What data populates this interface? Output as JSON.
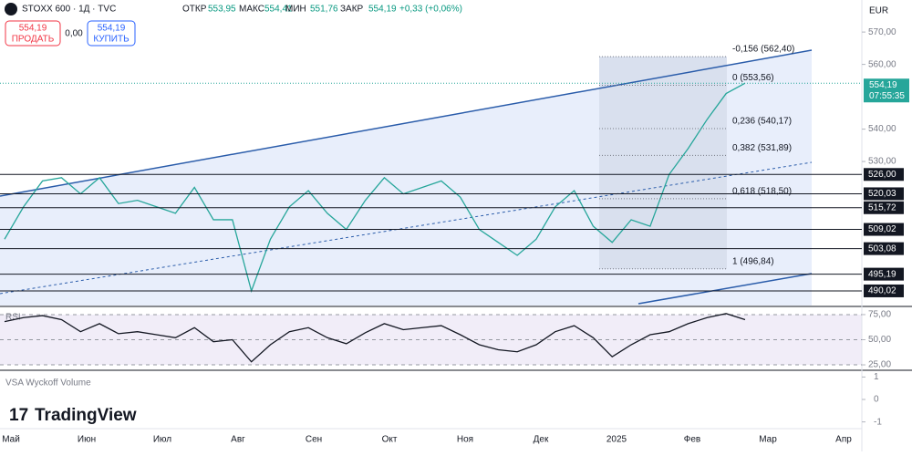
{
  "header": {
    "symbol": "STOXX 600 · 1Д · TVC",
    "open_label": "ОТКР",
    "open": "553,95",
    "high_label": "МАКС",
    "high": "554,41",
    "low_label": "МИН",
    "low": "551,76",
    "close_label": "ЗАКР",
    "close": "554,19",
    "change": "+0,33 (+0,06%)",
    "sell_price": "554,19",
    "sell": "ПРОДАТЬ",
    "spread": "0,00",
    "buy_price": "554,19",
    "buy": "КУПИТЬ",
    "currency": "EUR",
    "logo": "TradingView"
  },
  "chart_data": [
    {
      "type": "line",
      "name": "STOXX 600",
      "color": "#26a69a",
      "values": [
        506,
        516,
        524,
        525,
        520,
        525,
        517,
        518,
        516,
        514,
        522,
        512,
        512,
        490,
        506,
        516,
        521,
        514,
        509,
        518,
        525,
        520,
        522,
        524,
        519,
        509,
        505,
        501,
        506,
        516,
        521,
        510,
        505,
        512,
        510,
        526,
        534,
        543,
        551,
        554.19
      ],
      "ylim": [
        485.5,
        579.9
      ],
      "yticks": [
        {
          "value": 570,
          "label": "570,00"
        },
        {
          "value": 560,
          "label": "560,00"
        },
        {
          "value": 540,
          "label": "540,00"
        },
        {
          "value": 530,
          "label": "530,00"
        }
      ],
      "levels": [
        {
          "value": 526,
          "label": "526,00"
        },
        {
          "value": 520.03,
          "label": "520,03"
        },
        {
          "value": 515.72,
          "label": "515,72"
        },
        {
          "value": 509.02,
          "label": "509,02"
        },
        {
          "value": 503.08,
          "label": "503,08"
        },
        {
          "value": 495.19,
          "label": "495,19"
        },
        {
          "value": 490.02,
          "label": "490,02"
        }
      ],
      "fib": [
        {
          "value": 562.4,
          "label": "-0,156 (562,40)"
        },
        {
          "value": 553.56,
          "label": "0 (553,56)"
        },
        {
          "value": 540.17,
          "label": "0,236 (540,17)"
        },
        {
          "value": 531.89,
          "label": "0,382 (531,89)"
        },
        {
          "value": 518.5,
          "label": "0,618 (518,50)"
        },
        {
          "value": 496.84,
          "label": "1 (496,84)"
        }
      ],
      "last_price": {
        "value": 554.19,
        "label": "554,19",
        "countdown": "07:55:35"
      },
      "x_labels": [
        "Май",
        "Июн",
        "Июл",
        "Авг",
        "Сен",
        "Окт",
        "Ноя",
        "Дек",
        "2025",
        "Фев",
        "Мар",
        "Апр"
      ]
    },
    {
      "type": "line",
      "name": "RSI",
      "color": "#131722",
      "values": [
        68,
        72,
        74,
        70,
        58,
        66,
        56,
        58,
        55,
        52,
        62,
        48,
        50,
        28,
        45,
        58,
        62,
        52,
        46,
        57,
        66,
        60,
        62,
        64,
        55,
        45,
        40,
        38,
        45,
        58,
        64,
        52,
        33,
        45,
        55,
        58,
        66,
        72,
        76,
        70
      ],
      "ylim": [
        20.5,
        79.5
      ],
      "yticks": [
        {
          "value": 75,
          "label": "75,00"
        },
        {
          "value": 50,
          "label": "50,00"
        },
        {
          "value": 25,
          "label": "25,00"
        }
      ]
    },
    {
      "type": "empty",
      "name": "VSA Wyckoff Volume",
      "ylim": [
        -1.3,
        1.3
      ],
      "yticks": [
        1,
        0,
        -1
      ]
    }
  ]
}
